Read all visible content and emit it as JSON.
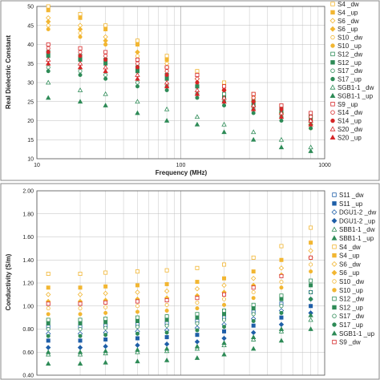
{
  "chart_data": [
    {
      "type": "scatter",
      "xscale": "log",
      "xlim": [
        10,
        1000
      ],
      "ylim": [
        10,
        50
      ],
      "xticks": [
        "10",
        "100",
        "1000"
      ],
      "yticks": [
        "10",
        "15",
        "20",
        "25",
        "30",
        "35",
        "40",
        "45",
        "50"
      ],
      "xlabel": "Frequency (MHz)",
      "ylabel": "Real Dielectric Constant",
      "grid": true,
      "legend_position": "right",
      "series": [
        {
          "name": "S4 _dw",
          "color": "#f2b632",
          "marker": "square-open",
          "x": [
            12,
            20,
            30,
            50,
            80,
            130,
            200,
            320,
            500,
            800
          ],
          "y": [
            50,
            48,
            45,
            41,
            37,
            33,
            30,
            27,
            24,
            21
          ]
        },
        {
          "name": "S4 _up",
          "color": "#f2b632",
          "marker": "square",
          "x": [
            12,
            20,
            30,
            50,
            80,
            130,
            200,
            320,
            500,
            800
          ],
          "y": [
            49,
            47,
            44,
            40,
            36,
            32,
            29,
            26,
            23,
            20
          ]
        },
        {
          "name": "S6 _dw",
          "color": "#f2b632",
          "marker": "diamond-open",
          "x": [
            12,
            20,
            30,
            50,
            80,
            130,
            200,
            320,
            500,
            800
          ],
          "y": [
            47,
            45,
            42,
            38,
            35,
            31,
            28,
            25,
            22,
            19
          ]
        },
        {
          "name": "S6 _up",
          "color": "#f2b632",
          "marker": "diamond",
          "x": [
            12,
            20,
            30,
            50,
            80,
            130,
            200,
            320,
            500,
            800
          ],
          "y": [
            46,
            44,
            41,
            38,
            34,
            31,
            28,
            25,
            22,
            19
          ]
        },
        {
          "name": "S10 _dw",
          "color": "#f2b632",
          "marker": "circle-open",
          "x": [
            12,
            20,
            30,
            50,
            80,
            130,
            200,
            320,
            500,
            800
          ],
          "y": [
            45,
            43,
            40,
            37,
            34,
            30,
            27,
            24,
            21,
            19
          ]
        },
        {
          "name": "S10 _up",
          "color": "#f2b632",
          "marker": "circle",
          "x": [
            12,
            20,
            30,
            50,
            80,
            130,
            200,
            320,
            500,
            800
          ],
          "y": [
            44,
            42,
            40,
            36,
            33,
            30,
            27,
            24,
            21,
            18
          ]
        },
        {
          "name": "S12 _dw",
          "color": "#2e8b57",
          "marker": "square-open",
          "x": [
            12,
            20,
            30,
            50,
            80,
            130,
            200,
            320,
            500,
            800
          ],
          "y": [
            38,
            37,
            36,
            34,
            32,
            29,
            27,
            25,
            23,
            21
          ]
        },
        {
          "name": "S12 _up",
          "color": "#2e8b57",
          "marker": "square",
          "x": [
            12,
            20,
            30,
            50,
            80,
            130,
            200,
            320,
            500,
            800
          ],
          "y": [
            37,
            36,
            35,
            33,
            31,
            29,
            26,
            24,
            22,
            20
          ]
        },
        {
          "name": "S17 _dw",
          "color": "#2e8b57",
          "marker": "circle-open",
          "x": [
            12,
            20,
            30,
            50,
            80,
            130,
            200,
            320,
            500,
            800
          ],
          "y": [
            34,
            33,
            32,
            30,
            29,
            27,
            25,
            23,
            21,
            19
          ]
        },
        {
          "name": "S17 _up",
          "color": "#2e8b57",
          "marker": "circle",
          "x": [
            12,
            20,
            30,
            50,
            80,
            130,
            200,
            320,
            500,
            800
          ],
          "y": [
            33,
            32,
            31,
            29,
            28,
            26,
            24,
            22,
            20,
            18
          ]
        },
        {
          "name": "SGB1-1 _dw",
          "color": "#2e8b57",
          "marker": "triangle-open",
          "x": [
            12,
            20,
            30,
            50,
            80,
            130,
            200,
            320,
            500,
            800
          ],
          "y": [
            30,
            28,
            27,
            25,
            23,
            21,
            19,
            17,
            15,
            13
          ]
        },
        {
          "name": "SGB1-1 _up",
          "color": "#2e8b57",
          "marker": "triangle",
          "x": [
            12,
            20,
            30,
            50,
            80,
            130,
            200,
            320,
            500,
            800
          ],
          "y": [
            26,
            25,
            24,
            22,
            20,
            19,
            17,
            15,
            13,
            12
          ]
        },
        {
          "name": "S9 _up",
          "color": "#d62728",
          "marker": "square-open",
          "x": [
            12,
            20,
            30,
            50,
            80,
            130,
            200,
            320,
            500,
            800
          ],
          "y": [
            40,
            39,
            38,
            36,
            34,
            32,
            29,
            27,
            24,
            22
          ]
        },
        {
          "name": "S14 _dw",
          "color": "#d62728",
          "marker": "circle-open",
          "x": [
            12,
            20,
            30,
            50,
            80,
            130,
            200,
            320,
            500,
            800
          ],
          "y": [
            39,
            38,
            37,
            35,
            33,
            31,
            28,
            26,
            23,
            21
          ]
        },
        {
          "name": "S14 _up",
          "color": "#d62728",
          "marker": "circle",
          "x": [
            12,
            20,
            30,
            50,
            80,
            130,
            200,
            320,
            500,
            800
          ],
          "y": [
            38,
            37,
            36,
            34,
            32,
            30,
            28,
            25,
            23,
            20
          ]
        },
        {
          "name": "S20 _dw",
          "color": "#d62728",
          "marker": "triangle-open",
          "x": [
            12,
            20,
            30,
            50,
            80,
            130,
            200,
            320,
            500,
            800
          ],
          "y": [
            36,
            35,
            34,
            32,
            30,
            28,
            26,
            24,
            22,
            20
          ]
        },
        {
          "name": "S20 _up",
          "color": "#d62728",
          "marker": "triangle",
          "x": [
            12,
            20,
            30,
            50,
            80,
            130,
            200,
            320,
            500,
            800
          ],
          "y": [
            35,
            34,
            33,
            31,
            29,
            27,
            25,
            23,
            21,
            19
          ]
        }
      ]
    },
    {
      "type": "scatter",
      "xscale": "log",
      "xlim": [
        10,
        1000
      ],
      "ylim": [
        0.4,
        2.0
      ],
      "yticks": [
        "0.40",
        "0.60",
        "0.80",
        "1.00",
        "1.20",
        "1.40",
        "1.60",
        "1.80",
        "2.00"
      ],
      "ylabel": "Conductivity (S/m)",
      "grid": true,
      "legend_position": "right",
      "series": [
        {
          "name": "S11 _dw",
          "color": "#1f5fa8",
          "marker": "square-open",
          "x": [
            12,
            20,
            30,
            50,
            80,
            130,
            200,
            320,
            500,
            800
          ],
          "y": [
            0.82,
            0.82,
            0.83,
            0.84,
            0.85,
            0.87,
            0.9,
            0.95,
            1.02,
            1.12
          ]
        },
        {
          "name": "S11 _up",
          "color": "#1f5fa8",
          "marker": "square",
          "x": [
            12,
            20,
            30,
            50,
            80,
            130,
            200,
            320,
            500,
            800
          ],
          "y": [
            0.7,
            0.7,
            0.71,
            0.72,
            0.73,
            0.75,
            0.78,
            0.83,
            0.9,
            1.0
          ]
        },
        {
          "name": "DGU1-2 _dw",
          "color": "#1f5fa8",
          "marker": "diamond-open",
          "x": [
            12,
            20,
            30,
            50,
            80,
            130,
            200,
            320,
            500,
            800
          ],
          "y": [
            0.76,
            0.76,
            0.77,
            0.78,
            0.79,
            0.81,
            0.84,
            0.89,
            0.96,
            1.06
          ]
        },
        {
          "name": "DGU1-2 _up",
          "color": "#1f5fa8",
          "marker": "diamond",
          "x": [
            12,
            20,
            30,
            50,
            80,
            130,
            200,
            320,
            500,
            800
          ],
          "y": [
            0.64,
            0.64,
            0.65,
            0.66,
            0.67,
            0.69,
            0.72,
            0.77,
            0.84,
            0.94
          ]
        },
        {
          "name": "SBB1-1 _dw",
          "color": "#2e8b57",
          "marker": "triangle-open",
          "x": [
            12,
            20,
            30,
            50,
            80,
            130,
            200,
            320,
            500,
            800
          ],
          "y": [
            0.58,
            0.58,
            0.59,
            0.6,
            0.61,
            0.63,
            0.66,
            0.71,
            0.78,
            0.88
          ]
        },
        {
          "name": "SBB1-1 _up",
          "color": "#2e8b57",
          "marker": "triangle",
          "x": [
            12,
            20,
            30,
            50,
            80,
            130,
            200,
            320,
            500,
            800
          ],
          "y": [
            0.5,
            0.5,
            0.51,
            0.52,
            0.53,
            0.55,
            0.58,
            0.63,
            0.7,
            0.8
          ]
        },
        {
          "name": "S4 _dw",
          "color": "#f2b632",
          "marker": "square-open",
          "x": [
            12,
            20,
            30,
            50,
            80,
            130,
            200,
            320,
            500,
            800
          ],
          "y": [
            1.28,
            1.28,
            1.29,
            1.3,
            1.31,
            1.33,
            1.36,
            1.42,
            1.52,
            1.68
          ]
        },
        {
          "name": "S4 _up",
          "color": "#f2b632",
          "marker": "square",
          "x": [
            12,
            20,
            30,
            50,
            80,
            130,
            200,
            320,
            500,
            800
          ],
          "y": [
            1.16,
            1.16,
            1.17,
            1.18,
            1.19,
            1.21,
            1.24,
            1.3,
            1.4,
            1.55
          ]
        },
        {
          "name": "S6 _dw",
          "color": "#f2b632",
          "marker": "diamond-open",
          "x": [
            12,
            20,
            30,
            50,
            80,
            130,
            200,
            320,
            500,
            800
          ],
          "y": [
            1.1,
            1.1,
            1.11,
            1.12,
            1.13,
            1.15,
            1.18,
            1.24,
            1.33,
            1.48
          ]
        },
        {
          "name": "S6 _up",
          "color": "#f2b632",
          "marker": "diamond",
          "x": [
            12,
            20,
            30,
            50,
            80,
            130,
            200,
            320,
            500,
            800
          ],
          "y": [
            1.04,
            1.04,
            1.05,
            1.06,
            1.07,
            1.09,
            1.12,
            1.18,
            1.27,
            1.42
          ]
        },
        {
          "name": "S10 _dw",
          "color": "#f2b632",
          "marker": "circle-open",
          "x": [
            12,
            20,
            30,
            50,
            80,
            130,
            200,
            320,
            500,
            800
          ],
          "y": [
            0.98,
            0.98,
            0.99,
            1.0,
            1.01,
            1.03,
            1.06,
            1.12,
            1.21,
            1.36
          ]
        },
        {
          "name": "S10 _up",
          "color": "#f2b632",
          "marker": "circle",
          "x": [
            12,
            20,
            30,
            50,
            80,
            130,
            200,
            320,
            500,
            800
          ],
          "y": [
            0.93,
            0.93,
            0.94,
            0.95,
            0.96,
            0.98,
            1.01,
            1.07,
            1.16,
            1.3
          ]
        },
        {
          "name": "S12 _dw",
          "color": "#2e8b57",
          "marker": "square-open",
          "x": [
            12,
            20,
            30,
            50,
            80,
            130,
            200,
            320,
            500,
            800
          ],
          "y": [
            0.88,
            0.88,
            0.89,
            0.9,
            0.91,
            0.93,
            0.96,
            1.01,
            1.09,
            1.22
          ]
        },
        {
          "name": "S12 _up",
          "color": "#2e8b57",
          "marker": "square",
          "x": [
            12,
            20,
            30,
            50,
            80,
            130,
            200,
            320,
            500,
            800
          ],
          "y": [
            0.85,
            0.85,
            0.86,
            0.87,
            0.88,
            0.9,
            0.93,
            0.98,
            1.06,
            1.18
          ]
        },
        {
          "name": "S17 _dw",
          "color": "#2e8b57",
          "marker": "circle-open",
          "x": [
            12,
            20,
            30,
            50,
            80,
            130,
            200,
            320,
            500,
            800
          ],
          "y": [
            0.8,
            0.8,
            0.81,
            0.82,
            0.83,
            0.85,
            0.88,
            0.93,
            1.0,
            1.12
          ]
        },
        {
          "name": "S17 _up",
          "color": "#2e8b57",
          "marker": "circle",
          "x": [
            12,
            20,
            30,
            50,
            80,
            130,
            200,
            320,
            500,
            800
          ],
          "y": [
            0.74,
            0.74,
            0.75,
            0.76,
            0.77,
            0.79,
            0.82,
            0.87,
            0.94,
            1.06
          ]
        },
        {
          "name": "SGB1-1 _up",
          "color": "#2e8b57",
          "marker": "triangle",
          "x": [
            12,
            20,
            30,
            50,
            80,
            130,
            200,
            320,
            500,
            800
          ],
          "y": [
            0.6,
            0.6,
            0.61,
            0.62,
            0.63,
            0.65,
            0.68,
            0.73,
            0.8,
            0.92
          ]
        },
        {
          "name": "S9 _dw",
          "color": "#d62728",
          "marker": "square-open",
          "x": [
            12,
            20,
            30,
            50,
            80,
            130,
            200,
            320,
            500,
            800
          ],
          "y": [
            1.02,
            1.02,
            1.03,
            1.04,
            1.05,
            1.07,
            1.1,
            1.16,
            1.26,
            1.42
          ]
        }
      ]
    }
  ]
}
